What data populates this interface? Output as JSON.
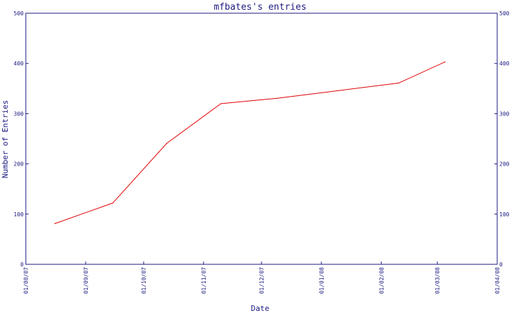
{
  "chart_data": {
    "type": "line",
    "title": "mfbates's entries",
    "xlabel": "Date",
    "ylabel": "Number of Entries",
    "ylim": [
      0,
      500
    ],
    "yticks": [
      0,
      100,
      200,
      300,
      400,
      500
    ],
    "xticks": [
      "01/08/07",
      "01/09/07",
      "01/10/07",
      "01/11/07",
      "01/12/07",
      "01/01/08",
      "01/02/08",
      "01/03/08",
      "01/04/08"
    ],
    "grid": false,
    "series": [
      {
        "color": "#e00000",
        "points": [
          {
            "x": "2007-08-16",
            "y": 81
          },
          {
            "x": "2007-09-15",
            "y": 122
          },
          {
            "x": "2007-10-13",
            "y": 241
          },
          {
            "x": "2007-11-10",
            "y": 320
          },
          {
            "x": "2007-12-10",
            "y": 331
          },
          {
            "x": "2008-01-10",
            "y": 346
          },
          {
            "x": "2008-02-10",
            "y": 361
          },
          {
            "x": "2008-03-05",
            "y": 403
          }
        ]
      }
    ],
    "colors": {
      "axis": "#1a1a80",
      "line": "#e00000"
    }
  }
}
